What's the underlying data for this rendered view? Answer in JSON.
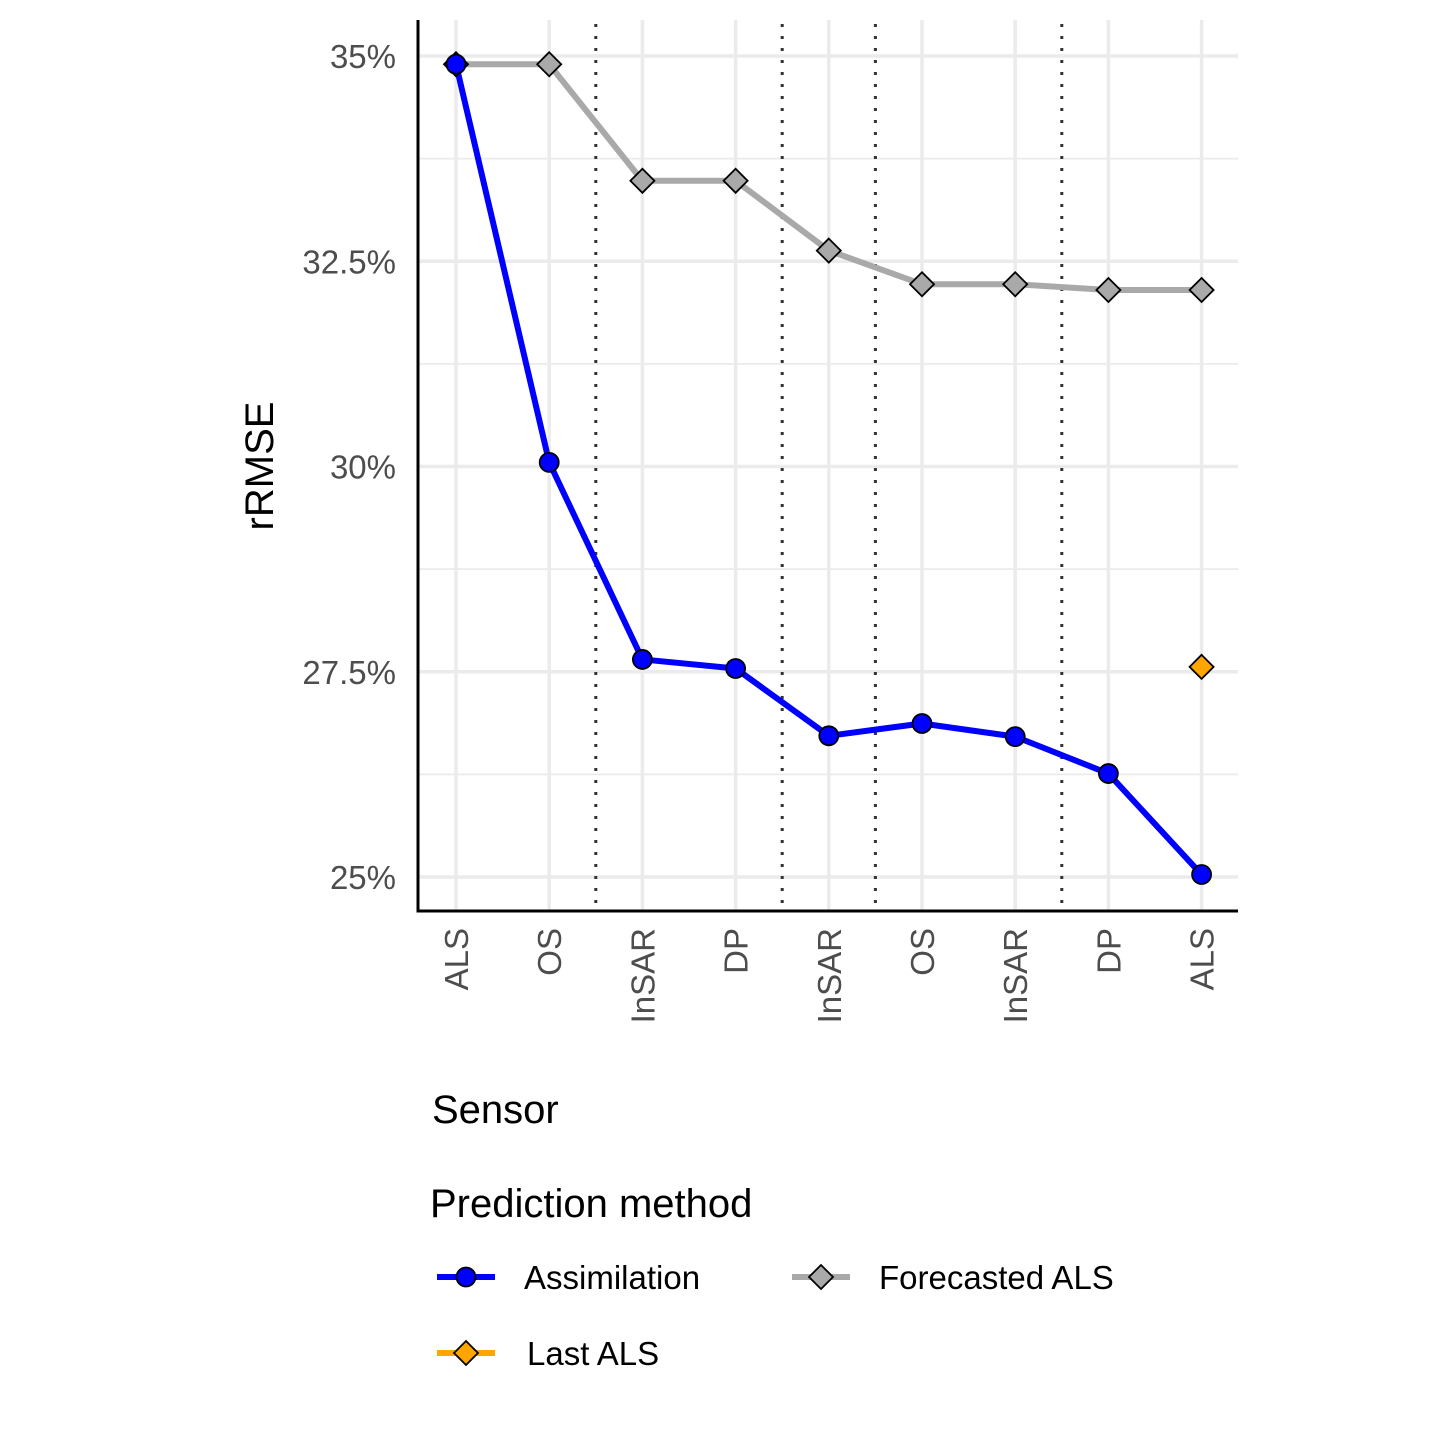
{
  "chart_data": {
    "type": "line",
    "ylabel": "rRMSE",
    "xlabel": "Sensor",
    "categories": [
      "ALS",
      "OS",
      "InSAR",
      "DP",
      "InSAR",
      "OS",
      "InSAR",
      "DP",
      "ALS"
    ],
    "y_tick_labels": [
      "25%",
      "27.5%",
      "30%",
      "32.5%",
      "35%"
    ],
    "y_ticks": [
      25,
      27.5,
      30,
      32.5,
      35
    ],
    "ylim": [
      24.6,
      35.5
    ],
    "grid": true,
    "separators_after_index": [
      1,
      3,
      4,
      6
    ],
    "legend_title": "Prediction method",
    "legend_position": "bottom",
    "series": [
      {
        "name": "Assimilation",
        "color": "#0000ff",
        "marker": "circle",
        "values": [
          34.9,
          30.05,
          27.65,
          27.54,
          26.72,
          26.87,
          26.71,
          26.26,
          25.03
        ]
      },
      {
        "name": "Forecasted ALS",
        "color": "#a9a9a9",
        "marker": "diamond",
        "values": [
          34.9,
          34.9,
          33.48,
          33.48,
          32.63,
          32.22,
          32.22,
          32.15,
          32.15
        ]
      },
      {
        "name": "Last ALS",
        "color": "#ffa500",
        "marker": "diamond",
        "values": [
          null,
          null,
          null,
          null,
          null,
          null,
          null,
          null,
          27.56
        ]
      }
    ]
  }
}
